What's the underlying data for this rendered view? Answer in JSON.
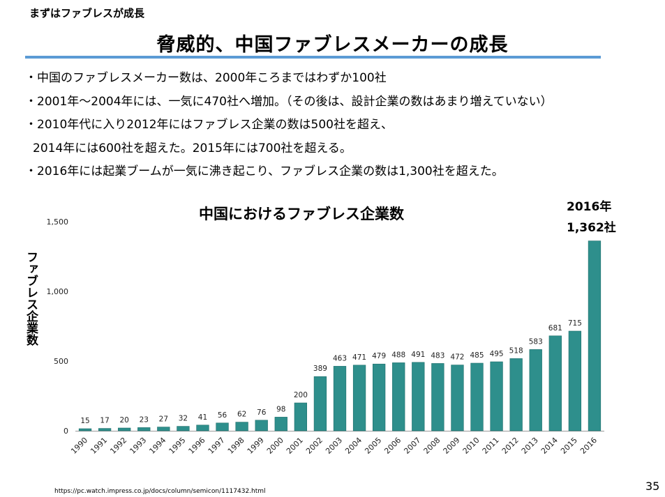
{
  "section_label": "まずはファブレスが成長",
  "title": "脅威的、中国ファブレスメーカーの成長",
  "bullets": [
    "・中国のファブレスメーカー数は、2000年ころまではわずか100社",
    "・2001年～2004年には、一気に470社へ増加。（その後は、設計企業の数はあまり増えていない）",
    "・2010年代に入り2012年にはファブレス企業の数は500社を超え、",
    "2014年には600社を超えた。2015年には700社を超える。",
    "・2016年には起業ブームが一気に沸き起こり、ファブレス企業の数は1,300社を超えた。"
  ],
  "callout": {
    "line1": "2016年",
    "line2": "1,362社"
  },
  "colors": {
    "bar": "#2e8f8c",
    "bar_edge": "#1f6e6b",
    "rule": "#5b9bd5"
  },
  "chart_data": {
    "type": "bar",
    "title": "中国におけるファブレス企業数",
    "ylabel": "ファブレス企業数",
    "xlabel": "",
    "categories": [
      "1990",
      "1991",
      "1992",
      "1993",
      "1994",
      "1995",
      "1996",
      "1997",
      "1998",
      "1999",
      "2000",
      "2001",
      "2002",
      "2003",
      "2004",
      "2005",
      "2006",
      "2007",
      "2008",
      "2009",
      "2010",
      "2011",
      "2012",
      "2013",
      "2014",
      "2015",
      "2016"
    ],
    "values": [
      15,
      17,
      20,
      23,
      27,
      32,
      41,
      56,
      62,
      76,
      98,
      200,
      389,
      463,
      471,
      479,
      488,
      491,
      483,
      472,
      485,
      495,
      518,
      583,
      681,
      715,
      1362
    ],
    "labeled_values": [
      15,
      17,
      20,
      23,
      27,
      32,
      41,
      56,
      62,
      76,
      98,
      200,
      389,
      463,
      471,
      479,
      488,
      491,
      483,
      472,
      485,
      495,
      518,
      583,
      681,
      715,
      null
    ],
    "ylim": [
      0,
      1500
    ],
    "yticks": [
      0,
      500,
      1000,
      1500
    ],
    "ytick_labels": [
      "0",
      "500",
      "1,000",
      "1,500"
    ],
    "grid": false
  },
  "source": "https://pc.watch.impress.co.jp/docs/column/semicon/1117432.html",
  "page_number": "35"
}
